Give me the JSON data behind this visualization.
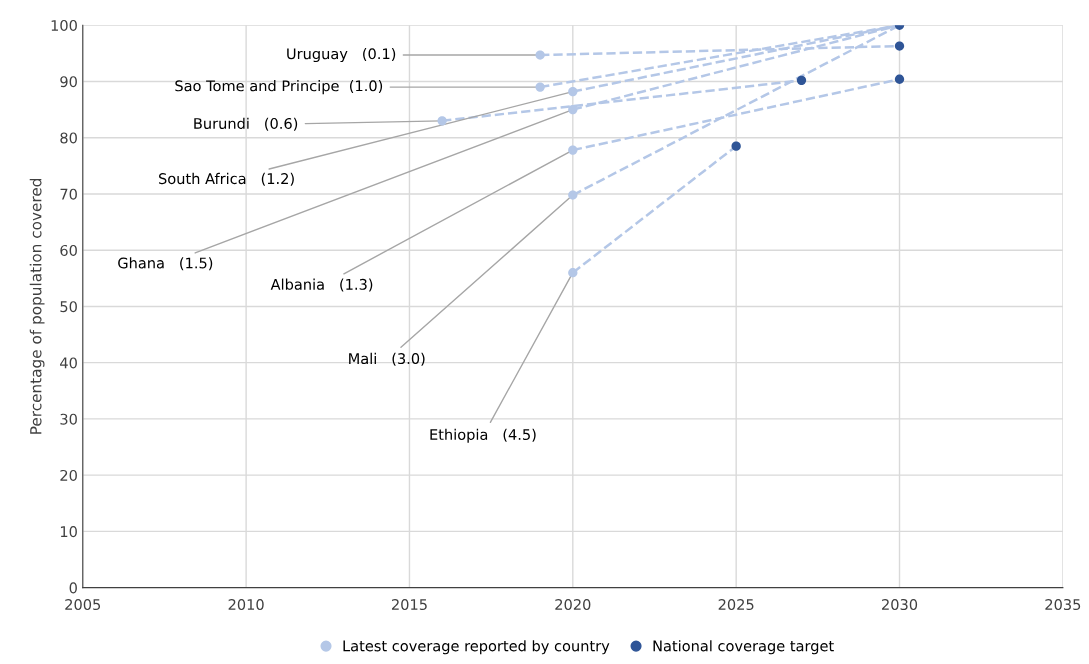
{
  "chart_data": {
    "type": "scatter",
    "ylabel": "Percentage of population covered",
    "xlim": [
      2005,
      2035
    ],
    "xticks": [
      2005,
      2010,
      2015,
      2020,
      2025,
      2030,
      2035
    ],
    "ylim": [
      0,
      100
    ],
    "yticks": [
      0,
      10,
      20,
      30,
      40,
      50,
      60,
      70,
      80,
      90,
      100
    ],
    "grid": true,
    "legend": "bottom",
    "marker": "circle",
    "series": [
      {
        "type": "line",
        "line_style": "dashed",
        "marker": "none",
        "color": "#b4c7e7",
        "x": [
          2019,
          2030
        ],
        "values": [
          94.7,
          96.3
        ]
      },
      {
        "type": "line",
        "line_style": "dashed",
        "marker": "none",
        "color": "#b4c7e7",
        "x": [
          2019,
          2030
        ],
        "values": [
          89.0,
          100
        ]
      },
      {
        "type": "line",
        "line_style": "dashed",
        "marker": "none",
        "color": "#b4c7e7",
        "x": [
          2016,
          2027
        ],
        "values": [
          83.0,
          90.2
        ]
      },
      {
        "type": "line",
        "line_style": "dashed",
        "marker": "none",
        "color": "#b4c7e7",
        "x": [
          2020,
          2030
        ],
        "values": [
          88.2,
          100
        ]
      },
      {
        "type": "line",
        "line_style": "dashed",
        "marker": "none",
        "color": "#b4c7e7",
        "x": [
          2020,
          2030
        ],
        "values": [
          85.0,
          100
        ]
      },
      {
        "type": "line",
        "line_style": "dashed",
        "marker": "none",
        "color": "#b4c7e7",
        "x": [
          2020,
          2030
        ],
        "values": [
          77.8,
          90.4
        ]
      },
      {
        "type": "line",
        "line_style": "dashed",
        "marker": "none",
        "color": "#b4c7e7",
        "x": [
          2020,
          2030
        ],
        "values": [
          69.8,
          100
        ]
      },
      {
        "type": "line",
        "line_style": "dashed",
        "marker": "none",
        "color": "#b4c7e7",
        "x": [
          2020,
          2025
        ],
        "values": [
          56.0,
          78.5
        ]
      },
      {
        "name": "Latest coverage reported by country",
        "color": "#b4c7e7",
        "x": [
          2019,
          2019,
          2016,
          2020,
          2020,
          2020,
          2020,
          2020
        ],
        "values": [
          94.7,
          89.0,
          83.0,
          88.2,
          85.0,
          77.8,
          69.8,
          56.0
        ]
      },
      {
        "name": "National coverage target",
        "color": "#2f5597",
        "x": [
          2030,
          2030,
          2027,
          2030,
          2025
        ],
        "values": [
          96.3,
          100,
          90.2,
          90.4,
          78.5
        ]
      }
    ],
    "annotations": [
      {
        "text": "Uruguay   (0.1)",
        "x": 2019,
        "y": 94.7
      },
      {
        "text": "Sao Tome and Principe  (1.0)",
        "x": 2019,
        "y": 89.0
      },
      {
        "text": "Burundi   (0.6)",
        "x": 2016,
        "y": 83.0
      },
      {
        "text": "South Africa   (1.2)",
        "x": 2020,
        "y": 88.2
      },
      {
        "text": "Ghana   (1.5)",
        "x": 2020,
        "y": 85.0
      },
      {
        "text": "Albania   (1.3)",
        "x": 2020,
        "y": 77.8
      },
      {
        "text": "Mali   (3.0)",
        "x": 2020,
        "y": 69.8
      },
      {
        "text": "Ethiopia   (4.5)",
        "x": 2020,
        "y": 56.0
      }
    ]
  }
}
